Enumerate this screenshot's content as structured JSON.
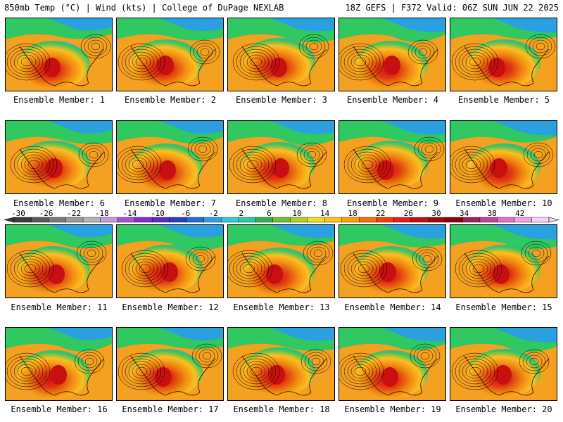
{
  "header": {
    "left": "850mb Temp (°C) | Wind (kts) | College of DuPage NEXLAB",
    "right": "18Z GEFS | F372 Valid: 06Z SUN JUN 22 2025"
  },
  "members": [
    "Ensemble Member: 1",
    "Ensemble Member: 2",
    "Ensemble Member: 3",
    "Ensemble Member: 4",
    "Ensemble Member: 5",
    "Ensemble Member: 6",
    "Ensemble Member: 7",
    "Ensemble Member: 8",
    "Ensemble Member: 9",
    "Ensemble Member: 10",
    "Ensemble Member: 11",
    "Ensemble Member: 12",
    "Ensemble Member: 13",
    "Ensemble Member: 14",
    "Ensemble Member: 15",
    "Ensemble Member: 16",
    "Ensemble Member: 17",
    "Ensemble Member: 18",
    "Ensemble Member: 19",
    "Ensemble Member: 20"
  ],
  "colorbar": {
    "labels": [
      "-30",
      "-26",
      "-22",
      "-18",
      "-14",
      "-10",
      "-6",
      "-2",
      "2",
      "6",
      "10",
      "14",
      "18",
      "22",
      "26",
      "30",
      "34",
      "38",
      "42"
    ],
    "colors": [
      "#3a3a3a",
      "#5a5a5a",
      "#7a7a7a",
      "#9a9a9a",
      "#b4b4b4",
      "#c59adb",
      "#a84fd8",
      "#8a2bd0",
      "#5a2bc8",
      "#2a3fc0",
      "#1f6fd8",
      "#2aa0e0",
      "#30c8d8",
      "#2cc8a0",
      "#2cb050",
      "#6cc030",
      "#b0d020",
      "#e8e020",
      "#ffc020",
      "#ffa000",
      "#f87000",
      "#f04000",
      "#e02020",
      "#c01010",
      "#a00810",
      "#8a0010",
      "#a02060",
      "#c040a0",
      "#e070d0",
      "#f0a0e8",
      "#f8d0f4"
    ]
  },
  "map_colors": {
    "warm_core": "#e03010",
    "hot": "#c81010",
    "warm": "#f08a10",
    "mild": "#ffc020",
    "cool": "#30c860",
    "cold": "#2aa0e0",
    "ocean": "#f4a020"
  }
}
